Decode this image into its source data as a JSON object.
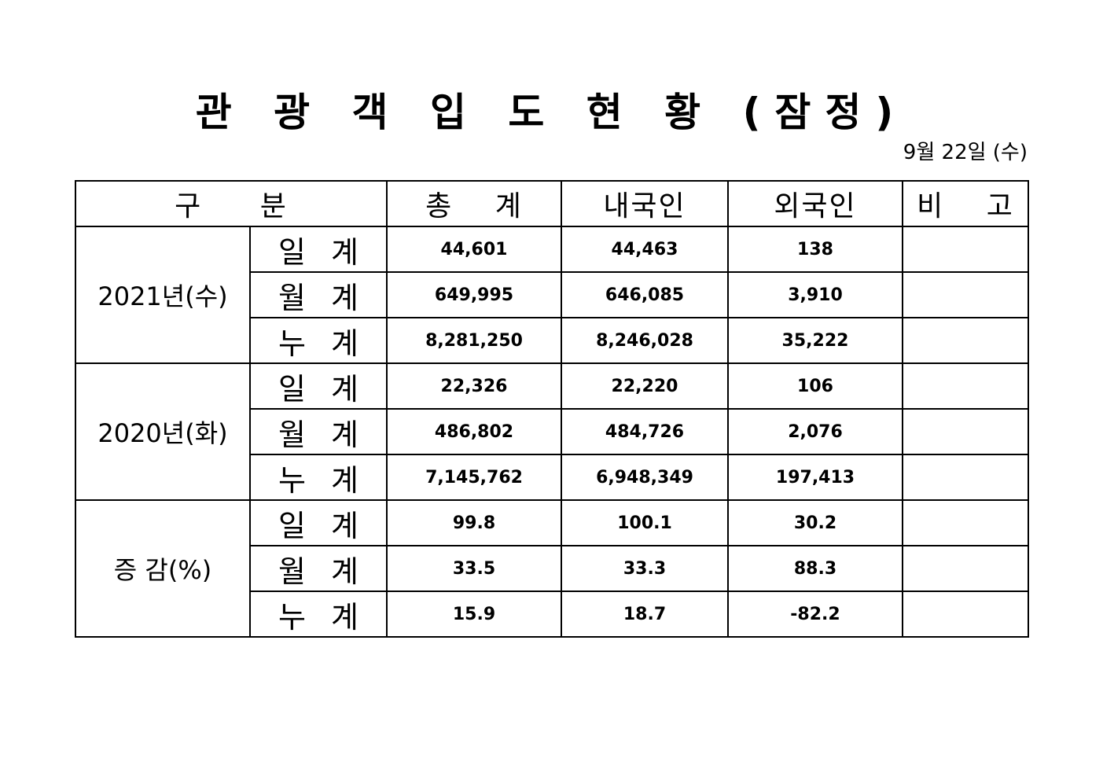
{
  "document": {
    "title": "관 광 객 입 도 현 황 (잠정)",
    "date": "9월  22일  (수)"
  },
  "table": {
    "headers": [
      "구 분",
      "총 계",
      "내국인",
      "외국인",
      "비 고"
    ],
    "groups": [
      {
        "label": "2021년(수)",
        "rows": [
          {
            "sub": "일 계",
            "total": "44,601",
            "domestic": "44,463",
            "foreign": "138",
            "note": ""
          },
          {
            "sub": "월 계",
            "total": "649,995",
            "domestic": "646,085",
            "foreign": "3,910",
            "note": ""
          },
          {
            "sub": "누 계",
            "total": "8,281,250",
            "domestic": "8,246,028",
            "foreign": "35,222",
            "note": ""
          }
        ]
      },
      {
        "label": "2020년(화)",
        "rows": [
          {
            "sub": "일 계",
            "total": "22,326",
            "domestic": "22,220",
            "foreign": "106",
            "note": ""
          },
          {
            "sub": "월 계",
            "total": "486,802",
            "domestic": "484,726",
            "foreign": "2,076",
            "note": ""
          },
          {
            "sub": "누 계",
            "total": "7,145,762",
            "domestic": "6,948,349",
            "foreign": "197,413",
            "note": ""
          }
        ]
      },
      {
        "label": "증 감(%)",
        "rows": [
          {
            "sub": "일 계",
            "total": "99.8",
            "domestic": "100.1",
            "foreign": "30.2",
            "note": ""
          },
          {
            "sub": "월 계",
            "total": "33.5",
            "domestic": "33.3",
            "foreign": "88.3",
            "note": ""
          },
          {
            "sub": "누 계",
            "total": "15.9",
            "domestic": "18.7",
            "foreign": "-82.2",
            "note": ""
          }
        ]
      }
    ]
  }
}
